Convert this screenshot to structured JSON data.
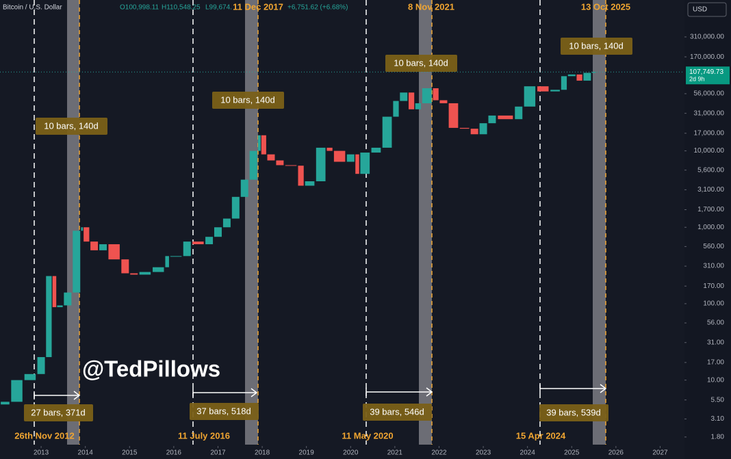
{
  "chart_data": {
    "type": "candlestick",
    "header": {
      "symbol": "Bitcoin / U.S. Dollar",
      "open": "O100,998.11",
      "high": "H110,548.25",
      "low": "L99,674.",
      "change": "+6,751.62 (+6.68%)"
    },
    "currency": "USD",
    "watermark": "@TedPillows",
    "log_scale": true,
    "up_color": "#26a69a",
    "down_color": "#ef5350",
    "x": [
      2012.07,
      2012.3,
      2012.6,
      2012.9,
      2013.1,
      2013.25,
      2013.35,
      2013.5,
      2013.7,
      2013.9,
      2013.95,
      2014.1,
      2014.3,
      2014.5,
      2014.8,
      2015.0,
      2015.2,
      2015.5,
      2015.8,
      2015.9,
      2016.2,
      2016.4,
      2016.7,
      2016.9,
      2017.1,
      2017.3,
      2017.5,
      2017.7,
      2017.9,
      2017.97,
      2018.1,
      2018.3,
      2018.5,
      2018.8,
      2018.95,
      2019.2,
      2019.45,
      2019.6,
      2019.9,
      2020.1,
      2020.2,
      2020.45,
      2020.7,
      2020.95,
      2021.1,
      2021.3,
      2021.45,
      2021.6,
      2021.85,
      2022.0,
      2022.2,
      2022.45,
      2022.7,
      2022.9,
      2023.1,
      2023.3,
      2023.7,
      2023.9,
      2024.2,
      2024.5,
      2024.75,
      2024.9,
      2025.1,
      2025.25,
      2025.45,
      2025.55
    ],
    "series": [
      {
        "values": [
          4.8,
          5.2,
          10,
          12,
          20,
          230,
          90,
          95,
          140,
          900,
          1000,
          650,
          500,
          600,
          380,
          250,
          240,
          260,
          300,
          420,
          420,
          650,
          600,
          750,
          1000,
          1300,
          2500,
          4200,
          10000,
          16000,
          9000,
          7500,
          6500,
          6400,
          3500,
          4000,
          11000,
          10000,
          7200,
          9000,
          5000,
          9500,
          11000,
          28000,
          45000,
          58000,
          35000,
          42000,
          66000,
          46000,
          42000,
          20000,
          19500,
          16500,
          23000,
          29000,
          26000,
          38000,
          70000,
          60000,
          63000,
          95000,
          100000,
          83000,
          105000,
          108000
        ]
      }
    ],
    "xlim": [
      2012.07,
      2027.55
    ],
    "xticks": [
      2013,
      2014,
      2015,
      2016,
      2017,
      2018,
      2019,
      2020,
      2021,
      2022,
      2023,
      2024,
      2025,
      2026,
      2027
    ],
    "ylim": [
      1.43,
      943000
    ],
    "yticks": [
      {
        "value": 310000,
        "label": "310,000.00"
      },
      {
        "value": 170000,
        "label": "170,000.00"
      },
      {
        "value": 56000,
        "label": "56,000.00"
      },
      {
        "value": 31000,
        "label": "31,000.00"
      },
      {
        "value": 17000,
        "label": "17,000.00"
      },
      {
        "value": 10000,
        "label": "10,000.00"
      },
      {
        "value": 5600,
        "label": "5,600.00"
      },
      {
        "value": 3100,
        "label": "3,100.00"
      },
      {
        "value": 1700,
        "label": "1,700.00"
      },
      {
        "value": 1000,
        "label": "1,000.00"
      },
      {
        "value": 560,
        "label": "560.00"
      },
      {
        "value": 310,
        "label": "310.00"
      },
      {
        "value": 170,
        "label": "170.00"
      },
      {
        "value": 100,
        "label": "100.00"
      },
      {
        "value": 56,
        "label": "56.00"
      },
      {
        "value": 31,
        "label": "31.00"
      },
      {
        "value": 17,
        "label": "17.00"
      },
      {
        "value": 10,
        "label": "10.00"
      },
      {
        "value": 5.5,
        "label": "5.50"
      },
      {
        "value": 3.1,
        "label": "3.10"
      },
      {
        "value": 1.8,
        "label": "1.80"
      }
    ],
    "last_price": {
      "value": 107749.73,
      "label": "107,749.73"
    },
    "countdown": "2d 9h",
    "top_dates": [
      "11 Dec 2017",
      "8 Nov 2021",
      "13 Oct 2025"
    ],
    "bottom_dates": [
      "26th Nov 2012",
      "11 July 2016",
      "11 May 2020",
      "15 Apr 2024"
    ],
    "range_labels": [
      "10 bars, 140d",
      "10 bars, 140d",
      "10 bars, 140d",
      "10 bars, 140d"
    ],
    "duration_labels": [
      "27 bars, 371d",
      "37 bars, 518d",
      "39 bars, 546d",
      "39 bars, 539d"
    ]
  }
}
